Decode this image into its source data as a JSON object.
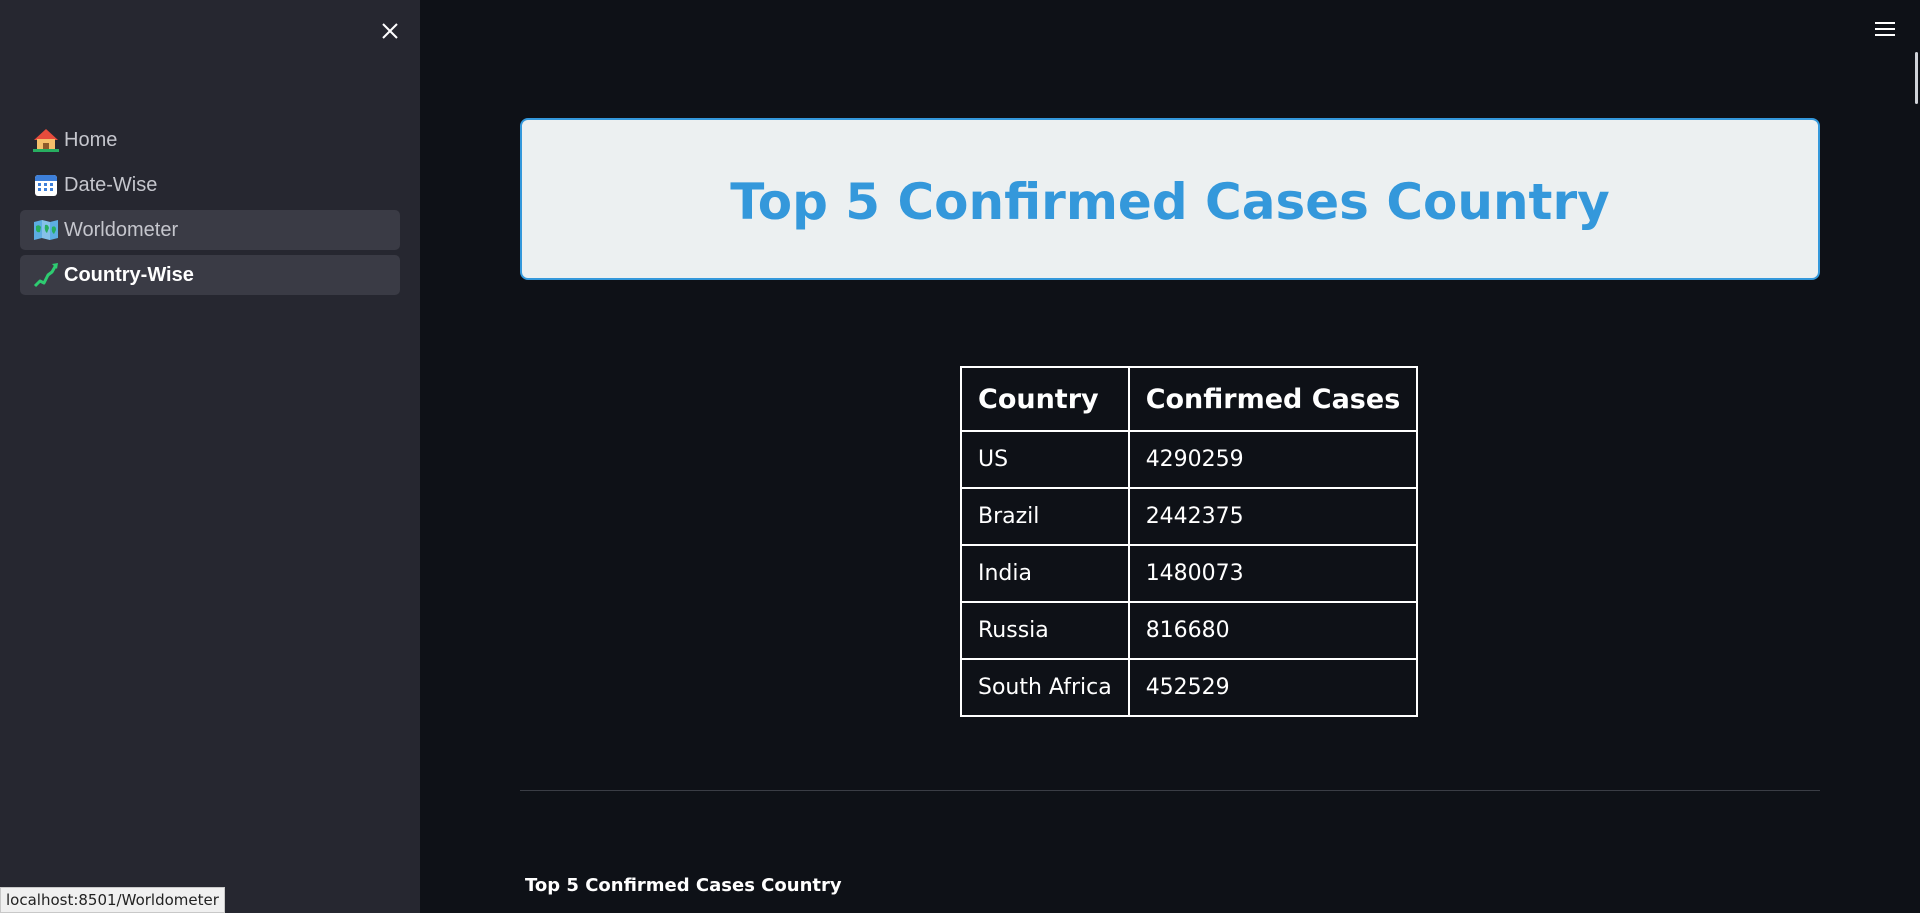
{
  "sidebar": {
    "close_icon": "close-icon",
    "items": [
      {
        "label": "Home",
        "icon": "house-icon",
        "state": "normal"
      },
      {
        "label": "Date-Wise",
        "icon": "calendar-icon",
        "state": "normal"
      },
      {
        "label": "Worldometer",
        "icon": "map-icon",
        "state": "hover"
      },
      {
        "label": "Country-Wise",
        "icon": "chart-trend-icon",
        "state": "active"
      }
    ]
  },
  "status_bar": {
    "url": "localhost:8501/Worldometer"
  },
  "main": {
    "menu_icon": "hamburger-menu-icon",
    "title": "Top 5 Confirmed Cases Country",
    "table": {
      "headers": [
        "Country",
        "Confirmed Cases"
      ],
      "rows": [
        [
          "US",
          "4290259"
        ],
        [
          "Brazil",
          "2442375"
        ],
        [
          "India",
          "1480073"
        ],
        [
          "Russia",
          "816680"
        ],
        [
          "South Africa",
          "452529"
        ]
      ]
    },
    "section_heading": "Top 5 Confirmed Cases Country"
  },
  "colors": {
    "background": "#0e1117",
    "sidebar": "#262730",
    "accent": "#3498db",
    "title_box": "#ecf0f1"
  }
}
